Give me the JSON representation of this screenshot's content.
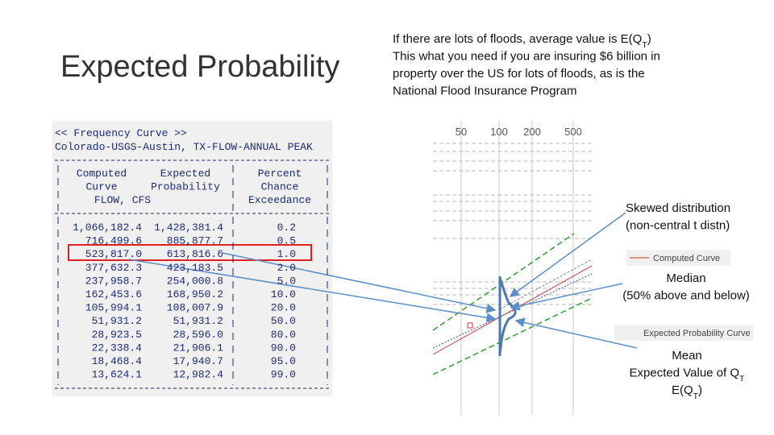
{
  "title": "Expected Probability",
  "description": {
    "lines": [
      [
        "If there are lots of floods, average value is E(Q",
        "T",
        ")"
      ],
      [
        "This what you need if you are insuring $6 billion in"
      ],
      [
        "property over the US for lots of floods, as is the"
      ],
      [
        "National Flood Insurance Program"
      ]
    ]
  },
  "table": {
    "title": "<< Frequency Curve >>",
    "subtitle": "Colorado-USGS-Austin, TX-FLOW-ANNUAL PEAK",
    "header": [
      [
        "Computed",
        "Curve",
        "FLOW, CFS"
      ],
      [
        "Expected",
        "Probability"
      ],
      [
        "Percent",
        "Chance",
        "Exceedance"
      ]
    ],
    "rows": [
      [
        "1,066,182.4",
        "1,428,381.4",
        "0.2"
      ],
      [
        "716,499.6",
        "885,877.7",
        "0.5"
      ],
      [
        "523,817.0",
        "613,816.6",
        "1.0"
      ],
      [
        "377,632.3",
        "423,183.5",
        "2.0"
      ],
      [
        "237,958.7",
        "254,000.8",
        "5.0"
      ],
      [
        "162,453.6",
        "168,950.2",
        "10.0"
      ],
      [
        "105,994.1",
        "108,007.9",
        "20.0"
      ],
      [
        "51,931.2",
        "51,931.2",
        "50.0"
      ],
      [
        "28,923.5",
        "28,596.0",
        "80.0"
      ],
      [
        "22,338.4",
        "21,906.1",
        "90.0"
      ],
      [
        "18,468.4",
        "17,940.7",
        "95.0"
      ],
      [
        "13,624.1",
        "12,982.4",
        "99.0"
      ]
    ]
  },
  "chart": {
    "xticks": [
      "50",
      "100",
      "200",
      "500"
    ],
    "legend": [
      "Computed Curve",
      "Expected Probability Curve"
    ]
  },
  "annotations": [
    {
      "lines": [
        [
          "Skewed distribution"
        ],
        [
          "(non-central t distn)"
        ]
      ]
    },
    {
      "lines": [
        [
          "Median"
        ],
        [
          "(50% above and below)"
        ]
      ]
    },
    {
      "lines": [
        [
          "Mean"
        ],
        [
          "Expected Value of Q",
          "T"
        ],
        [
          "E(Q",
          "T",
          ")"
        ]
      ]
    }
  ]
}
